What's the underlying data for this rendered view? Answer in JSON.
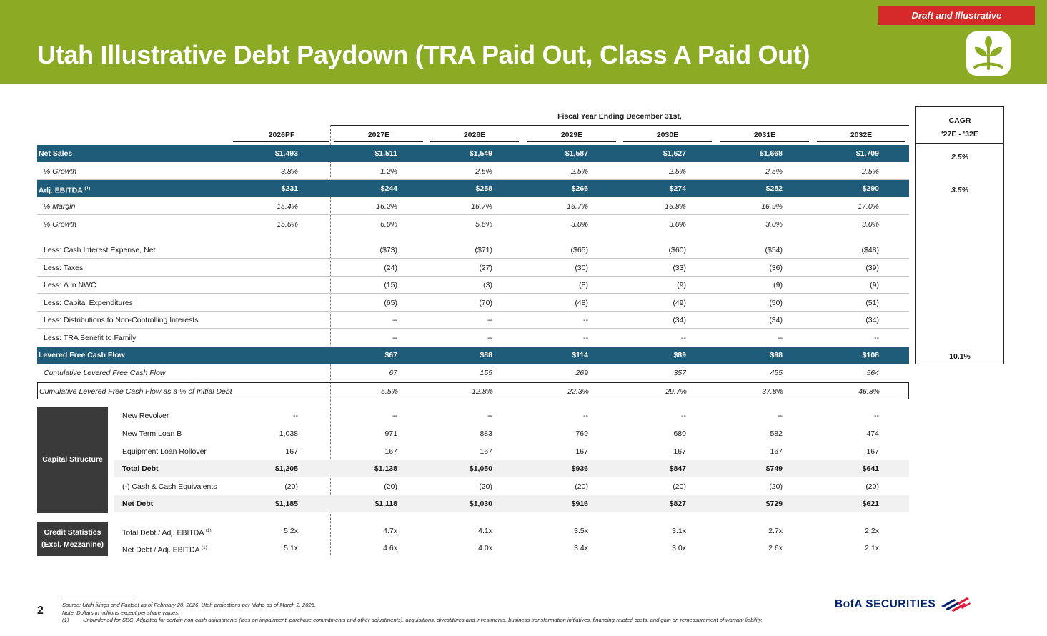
{
  "header": {
    "title": "Utah Illustrative Debt Paydown (TRA Paid Out, Class A Paid Out)",
    "badge": "Draft and Illustrative",
    "brand_color": "#8aab23",
    "badge_color": "#d62a2a",
    "logo_icon": "leaf-icon"
  },
  "table": {
    "super_header": "Fiscal Year Ending December 31st,",
    "columns": [
      "2026PF",
      "2027E",
      "2028E",
      "2029E",
      "2030E",
      "2031E",
      "2032E"
    ],
    "cagr_title": "CAGR",
    "cagr_sub": "'27E - '32E",
    "band_color": "#1f5c7a",
    "rows": [
      {
        "label": "Net Sales",
        "values": [
          "$1,493",
          "$1,511",
          "$1,549",
          "$1,587",
          "$1,627",
          "$1,668",
          "$1,709"
        ],
        "cagr": "2.5%"
      },
      {
        "label": "% Growth",
        "values": [
          "3.8%",
          "1.2%",
          "2.5%",
          "2.5%",
          "2.5%",
          "2.5%",
          "2.5%"
        ]
      },
      {
        "label": "Adj. EBITDA",
        "sup": "(1)",
        "values": [
          "$231",
          "$244",
          "$258",
          "$266",
          "$274",
          "$282",
          "$290"
        ],
        "cagr": "3.5%"
      },
      {
        "label": "% Margin",
        "values": [
          "15.4%",
          "16.2%",
          "16.7%",
          "16.7%",
          "16.8%",
          "16.9%",
          "17.0%"
        ]
      },
      {
        "label": "% Growth",
        "values": [
          "15.6%",
          "6.0%",
          "5.6%",
          "3.0%",
          "3.0%",
          "3.0%",
          "3.0%"
        ]
      },
      {
        "label": "Less: Cash Interest Expense, Net",
        "values": [
          "",
          "($73)",
          "($71)",
          "($65)",
          "($60)",
          "($54)",
          "($48)"
        ]
      },
      {
        "label": "Less: Taxes",
        "values": [
          "",
          "(24)",
          "(27)",
          "(30)",
          "(33)",
          "(36)",
          "(39)"
        ]
      },
      {
        "label": "Less: Δ in NWC",
        "values": [
          "",
          "(15)",
          "(3)",
          "(8)",
          "(9)",
          "(9)",
          "(9)"
        ]
      },
      {
        "label": "Less: Capital Expenditures",
        "values": [
          "",
          "(65)",
          "(70)",
          "(48)",
          "(49)",
          "(50)",
          "(51)"
        ]
      },
      {
        "label": "Less: Distributions to Non-Controlling Interests",
        "values": [
          "",
          "--",
          "--",
          "--",
          "(34)",
          "(34)",
          "(34)"
        ]
      },
      {
        "label": "Less: TRA Benefit to Family",
        "values": [
          "",
          "--",
          "--",
          "--",
          "--",
          "--",
          "--"
        ]
      },
      {
        "label": "Levered Free Cash Flow",
        "values": [
          "",
          "$67",
          "$88",
          "$114",
          "$89",
          "$98",
          "$108"
        ],
        "cagr": "10.1%"
      },
      {
        "label": "Cumulative Levered Free Cash Flow",
        "values": [
          "",
          "67",
          "155",
          "269",
          "357",
          "455",
          "564"
        ]
      },
      {
        "label": "Cumulative Levered Free Cash Flow as a % of Initial Debt",
        "values": [
          "",
          "5.5%",
          "12.8%",
          "22.3%",
          "29.7%",
          "37.8%",
          "46.8%"
        ]
      }
    ]
  },
  "capital_structure": {
    "title": "Capital Structure",
    "rows": [
      {
        "label": "New Revolver",
        "values": [
          "--",
          "--",
          "--",
          "--",
          "--",
          "--",
          "--"
        ]
      },
      {
        "label": "New Term Loan B",
        "values": [
          "1,038",
          "971",
          "883",
          "769",
          "680",
          "582",
          "474"
        ]
      },
      {
        "label": "Equipment Loan Rollover",
        "values": [
          "167",
          "167",
          "167",
          "167",
          "167",
          "167",
          "167"
        ]
      },
      {
        "label": "Total Debt",
        "values": [
          "$1,205",
          "$1,138",
          "$1,050",
          "$936",
          "$847",
          "$749",
          "$641"
        ]
      },
      {
        "label": "(-) Cash & Cash Equivalents",
        "values": [
          "(20)",
          "(20)",
          "(20)",
          "(20)",
          "(20)",
          "(20)",
          "(20)"
        ]
      },
      {
        "label": "Net Debt",
        "values": [
          "$1,185",
          "$1,118",
          "$1,030",
          "$916",
          "$827",
          "$729",
          "$621"
        ]
      }
    ]
  },
  "credit_statistics": {
    "title_line1": "Credit Statistics",
    "title_line2": "(Excl. Mezzanine)",
    "rows": [
      {
        "label": "Total Debt / Adj. EBITDA",
        "sup": "(1)",
        "values": [
          "5.2x",
          "4.7x",
          "4.1x",
          "3.5x",
          "3.1x",
          "2.7x",
          "2.2x"
        ]
      },
      {
        "label": "Net Debt / Adj. EBITDA",
        "sup": "(1)",
        "values": [
          "5.1x",
          "4.6x",
          "4.0x",
          "3.4x",
          "3.0x",
          "2.6x",
          "2.1x"
        ]
      }
    ]
  },
  "footer": {
    "page_number": "2",
    "source": "Source: Utah filings and Factset as of February 20, 2026. Utah projections per Idaho as of March 2, 2026.",
    "note": "Note: Dollars in millions except per share values.",
    "fn1_mark": "(1)",
    "fn1_text": "Unburdened for SBC. Adjusted for certain non-cash adjustments (loss on impairment, purchase commitments and other adjustments), acquisitions, divestitures and investments, business transformation initiatives, financing-related costs, and gain on remeasurement of warrant liability.",
    "bofa_text": "BofA SECURITIES",
    "bofa_icon": "bofa-flag-icon"
  }
}
